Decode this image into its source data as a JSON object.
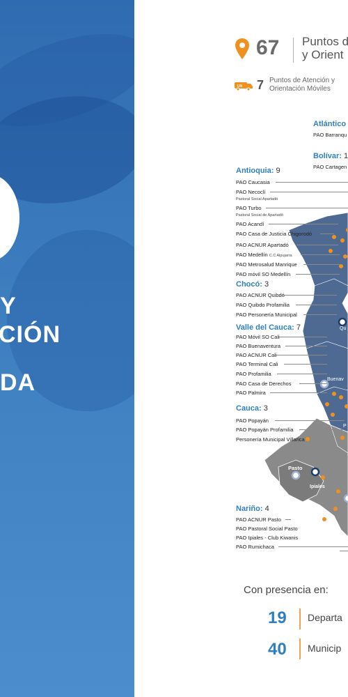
{
  "left_panel": {
    "lines": [
      "Y",
      "CIÓN",
      "DA"
    ]
  },
  "summary": {
    "fixed_count": "67",
    "fixed_label_line1": "Puntos de",
    "fixed_label_line2": "y Orient",
    "mobile_count": "7",
    "mobile_label_line1": "Puntos de Atención y",
    "mobile_label_line2": "Orientación Móviles",
    "van_icon_text": "UN"
  },
  "departments": {
    "atlantico": {
      "name": "Atlántico",
      "count": "",
      "items": [
        "PAO Barranqu"
      ]
    },
    "bolivar": {
      "name": "Bolívar:",
      "count": "1",
      "items": [
        "PAO Cartagen"
      ]
    },
    "antioquia": {
      "name": "Antioquia:",
      "count": "9",
      "items": [
        {
          "label": "PAO Caucasia",
          "sub": ""
        },
        {
          "label": "PAO Necoclí",
          "sub": "Pastoral Social Apartadó"
        },
        {
          "label": "PAO Turbo",
          "sub": "Pastoral Social de Apartadó"
        },
        {
          "label": "PAO Acandí",
          "sub": ""
        },
        {
          "label": "PAO Casa de Justicia Chigorodó",
          "sub": ""
        },
        {
          "label": "PAO ACNUR Apartadó",
          "sub": ""
        },
        {
          "label": "PAO Medellín",
          "sub": "C.C Alpujarra"
        },
        {
          "label": "PAO Metrosalud Manrique",
          "sub": ""
        },
        {
          "label": "PAO móvil SO Medellín",
          "sub": ""
        }
      ]
    },
    "choco": {
      "name": "Chocó:",
      "count": "3",
      "items": [
        "PAO ACNUR Quibdó",
        "PAO Quibdo Profamilia",
        "PAO Personería Municipal"
      ]
    },
    "valle": {
      "name": "Valle del Cauca:",
      "count": "7",
      "items": [
        "PAO Móvil SO Cali",
        "PAO Buenaventura",
        "PAO ACNUR Cali",
        "PAO Terminal Cali",
        "PAO Profamilia",
        "PAO Casa de Derechos",
        "PAO Palmira"
      ]
    },
    "cauca": {
      "name": "Cauca:",
      "count": "3",
      "items": [
        "PAO Popayán",
        "PAO Popayán Profamilia",
        "Personería Municipal Villarica"
      ]
    },
    "narino": {
      "name": "Nariño:",
      "count": "4",
      "items": [
        "PAO ACNUR Pasto",
        "PAO Pastoral Social Pasto",
        "PAO Ipiales - Club Kiwanis",
        "PAO Rumichaca"
      ]
    }
  },
  "map_labels": {
    "quibdo": "Qu",
    "buenaventura": "Buenav",
    "pasto": "Pasto",
    "ipiales": "Ipiales",
    "popayan": "P"
  },
  "presence": {
    "title": "Con presencia en:",
    "departments_count": "19",
    "departments_label": "Departa",
    "municipalities_count": "40",
    "municipalities_label": "Municip"
  },
  "colors": {
    "brand_blue": "#2f7fc1",
    "panel_blue": "#3e7fc0",
    "orange": "#f0901e",
    "map_blue": "#4e6a92",
    "map_gray": "#8a8a8a"
  }
}
